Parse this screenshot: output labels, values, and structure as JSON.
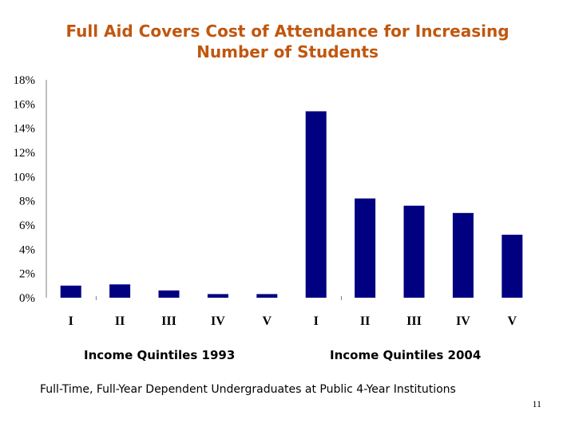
{
  "slide": {
    "title_line1": "Full Aid Covers Cost of Attendance for Increasing",
    "title_line2": "Number of Students",
    "footnote": "Full-Time, Full-Year Dependent Undergraduates at Public 4-Year Institutions",
    "page_number": "11"
  },
  "chart_data": {
    "type": "bar",
    "title": "Full Aid Covers Cost of Attendance for Increasing Number of Students",
    "categories": [
      "I",
      "II",
      "III",
      "IV",
      "V",
      "I",
      "II",
      "III",
      "IV",
      "V"
    ],
    "groups": [
      {
        "label": "Income Quintiles 1993",
        "categories": [
          "I",
          "II",
          "III",
          "IV",
          "V"
        ]
      },
      {
        "label": "Income Quintiles 2004",
        "categories": [
          "I",
          "II",
          "III",
          "IV",
          "V"
        ]
      }
    ],
    "series": [
      {
        "values": [
          1.0,
          1.1,
          0.6,
          0.3,
          0.3,
          15.4,
          8.2,
          7.6,
          7.0,
          5.2
        ]
      }
    ],
    "y_ticks": [
      "0%",
      "2%",
      "4%",
      "6%",
      "8%",
      "10%",
      "12%",
      "14%",
      "16%",
      "18%"
    ],
    "ylim": [
      0,
      18
    ],
    "xlabel": "",
    "ylabel": "",
    "grid": false,
    "legend": "none",
    "bar_color": "#000080"
  }
}
